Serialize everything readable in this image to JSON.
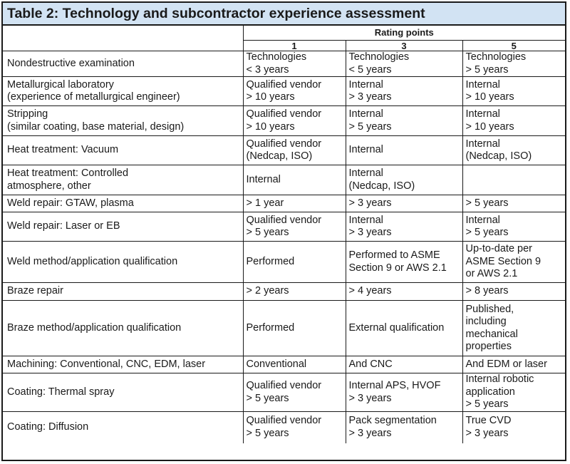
{
  "title": "Table 2: Technology and subcontractor experience assessment",
  "rating_header": "Rating points",
  "columns": [
    "1",
    "3",
    "5"
  ],
  "rows": [
    {
      "label": [
        "Nondestructive examination"
      ],
      "c1": [
        "Technologies",
        "< 3 years"
      ],
      "c3": [
        "Technologies",
        "< 5 years"
      ],
      "c5": [
        "Technologies",
        "> 5 years"
      ]
    },
    {
      "label": [
        "Metallurgical laboratory",
        "(experience of metallurgical engineer)"
      ],
      "c1": [
        "Qualified vendor",
        "> 10 years"
      ],
      "c3": [
        "Internal",
        "> 3 years"
      ],
      "c5": [
        "Internal",
        "> 10 years"
      ]
    },
    {
      "label": [
        "Stripping",
        "(similar coating, base material, design)"
      ],
      "c1": [
        "Qualified vendor",
        "> 10 years"
      ],
      "c3": [
        "Internal",
        "> 5 years"
      ],
      "c5": [
        "Internal",
        "> 10 years"
      ]
    },
    {
      "label": [
        "Heat treatment: Vacuum"
      ],
      "c1": [
        "Qualified vendor",
        "(Nedcap, ISO)"
      ],
      "c3": [
        "Internal"
      ],
      "c5": [
        "Internal",
        "(Nedcap, ISO)"
      ]
    },
    {
      "label": [
        "Heat treatment: Controlled",
        "atmosphere, other"
      ],
      "c1": [
        "Internal"
      ],
      "c3": [
        "Internal",
        "(Nedcap, ISO)"
      ],
      "c5": []
    },
    {
      "label": [
        "Weld repair: GTAW, plasma"
      ],
      "c1": [
        "> 1 year"
      ],
      "c3": [
        "> 3 years"
      ],
      "c5": [
        "> 5 years"
      ]
    },
    {
      "label": [
        "Weld repair: Laser or EB"
      ],
      "c1": [
        "Qualified vendor",
        "> 5 years"
      ],
      "c3": [
        "Internal",
        "> 3 years"
      ],
      "c5": [
        "Internal",
        "> 5 years"
      ]
    },
    {
      "label": [
        "Weld method/application qualification"
      ],
      "c1": [
        "Performed"
      ],
      "c3": [
        "Performed to ASME",
        "Section 9 or AWS 2.1"
      ],
      "c5": [
        "Up-to-date per",
        "ASME Section 9",
        "or AWS 2.1"
      ]
    },
    {
      "label": [
        "Braze repair"
      ],
      "c1": [
        "> 2 years"
      ],
      "c3": [
        "> 4 years"
      ],
      "c5": [
        "> 8 years"
      ]
    },
    {
      "label": [
        "Braze method/application qualification"
      ],
      "c1": [
        "Performed"
      ],
      "c3": [
        "External qualification"
      ],
      "c5": [
        "Published,",
        "including",
        "mechanical",
        "properties"
      ]
    },
    {
      "label": [
        "Machining: Conventional, CNC, EDM, laser"
      ],
      "c1": [
        "Conventional"
      ],
      "c3": [
        "And CNC"
      ],
      "c5": [
        "And EDM or laser"
      ]
    },
    {
      "label": [
        "Coating: Thermal spray"
      ],
      "c1": [
        "Qualified vendor",
        "> 5 years"
      ],
      "c3": [
        "Internal APS, HVOF",
        "> 3 years"
      ],
      "c5": [
        "Internal robotic",
        "application",
        "> 5 years"
      ]
    },
    {
      "label": [
        "Coating: Diffusion"
      ],
      "c1": [
        "Qualified vendor",
        "> 5 years"
      ],
      "c3": [
        "Pack segmentation",
        "> 3 years"
      ],
      "c5": [
        "True CVD",
        "> 3 years"
      ]
    }
  ]
}
